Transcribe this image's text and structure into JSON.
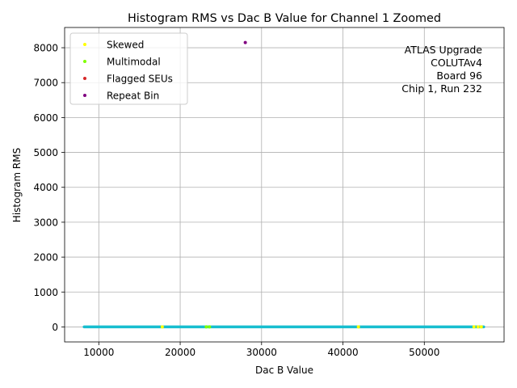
{
  "chart_data": {
    "type": "scatter",
    "title": "Histogram RMS vs Dac B Value for Channel 1 Zoomed",
    "xlabel": "Dac B Value",
    "ylabel": "Histogram RMS",
    "xlim": [
      5800,
      59800
    ],
    "ylim": [
      -430,
      8580
    ],
    "xticks": [
      10000,
      20000,
      30000,
      40000,
      50000
    ],
    "xtick_labels": [
      "10000",
      "20000",
      "30000",
      "40000",
      "50000"
    ],
    "yticks": [
      0,
      1000,
      2000,
      3000,
      4000,
      5000,
      6000,
      7000,
      8000
    ],
    "ytick_labels": [
      "0",
      "1000",
      "2000",
      "3000",
      "4000",
      "5000",
      "6000",
      "7000",
      "8000"
    ],
    "grid": true,
    "legend_position": "top-left",
    "annotation_lines": [
      "ATLAS Upgrade",
      "COLUTAv4",
      "Board 96",
      "Chip 1, Run 232"
    ],
    "baseline": {
      "x_range": [
        8200,
        57300
      ],
      "y": 0,
      "color": "#17becf"
    },
    "series": [
      {
        "name": "Skewed",
        "color": "#ffff00",
        "x": [
          17800,
          41900,
          56100,
          56600,
          57000
        ],
        "y": [
          0,
          0,
          0,
          0,
          0
        ]
      },
      {
        "name": "Multimodal",
        "color": "#7fff00",
        "x": [
          23200,
          23600
        ],
        "y": [
          0,
          0
        ]
      },
      {
        "name": "Flagged SEUs",
        "color": "#d62728",
        "x": [],
        "y": []
      },
      {
        "name": "Repeat Bin",
        "color": "#800080",
        "x": [
          28000
        ],
        "y": [
          8150
        ]
      }
    ]
  }
}
